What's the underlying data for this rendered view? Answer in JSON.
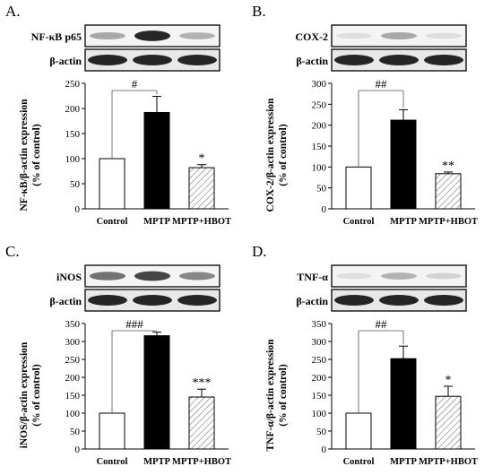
{
  "colors": {
    "control_fill": "#ffffff",
    "mptp_fill": "#000000",
    "hbot_fill": "hatched diagonal lines",
    "axis": "#000000",
    "blot_band": "#1a1a1a",
    "blot_background": "#f4f4f4"
  },
  "chart_data": [
    {
      "panel_label": "A.",
      "type": "bar",
      "blot": {
        "target_label": "NF-κB p65",
        "loading_label": "β-actin"
      },
      "ylabel": "NF-κB/β-actin expression (% of control)",
      "ylabel_line1": "NF-κB/β-actin expression",
      "ylabel_line2": "(% of control)",
      "categories": [
        "Control",
        "MPTP",
        "MPTP+HBOT"
      ],
      "values": [
        100,
        192,
        82
      ],
      "errors": [
        0,
        32,
        6
      ],
      "significance": [
        "",
        "",
        "*"
      ],
      "bracket_label": "#",
      "ylim": [
        0,
        250
      ],
      "yticks": [
        0,
        50,
        100,
        150,
        200,
        250
      ],
      "ytick_labels": [
        "0",
        "50",
        "100",
        "150",
        "200",
        "250"
      ],
      "blot_intensity": [
        0.35,
        0.95,
        0.3
      ]
    },
    {
      "panel_label": "B.",
      "type": "bar",
      "blot": {
        "target_label": "COX-2",
        "loading_label": "β-actin"
      },
      "ylabel": "COX-2/β-actin expression (% of control)",
      "ylabel_line1": "COX-2/β-actin expression",
      "ylabel_line2": "(% of control)",
      "categories": [
        "Control",
        "MPTP",
        "MPTP+HBOT"
      ],
      "values": [
        100,
        212,
        84
      ],
      "errors": [
        0,
        25,
        4
      ],
      "significance": [
        "",
        "",
        "**"
      ],
      "bracket_label": "##",
      "ylim": [
        0,
        300
      ],
      "yticks": [
        0,
        50,
        100,
        150,
        200,
        250,
        300
      ],
      "ytick_labels": [
        "0",
        "50",
        "100",
        "150",
        "200",
        "250",
        "300"
      ],
      "blot_intensity": [
        0.1,
        0.35,
        0.1
      ]
    },
    {
      "panel_label": "C.",
      "type": "bar",
      "blot": {
        "target_label": "iNOS",
        "loading_label": "β-actin"
      },
      "ylabel": "iNOS/β-actin expression (% of control)",
      "ylabel_line1": "iNOS/β-actin expression",
      "ylabel_line2": "(% of control)",
      "categories": [
        "Control",
        "MPTP",
        "MPTP+HBOT"
      ],
      "values": [
        100,
        316,
        145
      ],
      "errors": [
        0,
        10,
        22
      ],
      "significance": [
        "",
        "",
        "***"
      ],
      "bracket_label": "###",
      "ylim": [
        0,
        350
      ],
      "yticks": [
        0,
        50,
        100,
        150,
        200,
        250,
        300,
        350
      ],
      "ytick_labels": [
        "0",
        "50",
        "100",
        "150",
        "200",
        "250",
        "300",
        "350"
      ],
      "blot_intensity": [
        0.6,
        0.8,
        0.5
      ]
    },
    {
      "panel_label": "D.",
      "type": "bar",
      "blot": {
        "target_label": "TNF-α",
        "loading_label": "β-actin"
      },
      "ylabel": "TNF-α/β-actin expression (% of control)",
      "ylabel_line1": "TNF-α/β-actin expression",
      "ylabel_line2": "(% of control)",
      "categories": [
        "Control",
        "MPTP",
        "MPTP+HBOT"
      ],
      "values": [
        100,
        252,
        147
      ],
      "errors": [
        0,
        35,
        28
      ],
      "significance": [
        "",
        "",
        "*"
      ],
      "bracket_label": "##",
      "ylim": [
        0,
        350
      ],
      "yticks": [
        0,
        50,
        100,
        150,
        200,
        250,
        300,
        350
      ],
      "ytick_labels": [
        "0",
        "50",
        "100",
        "150",
        "200",
        "250",
        "300",
        "350"
      ],
      "blot_intensity": [
        0.1,
        0.3,
        0.15
      ]
    }
  ]
}
